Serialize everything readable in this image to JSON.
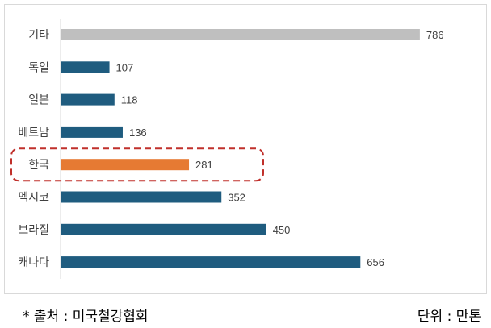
{
  "chart_data": {
    "type": "bar",
    "orientation": "horizontal",
    "categories": [
      "기타",
      "독일",
      "일본",
      "베트남",
      "한국",
      "멕시코",
      "브라질",
      "캐나다"
    ],
    "values": [
      786,
      107,
      118,
      136,
      281,
      352,
      450,
      656
    ],
    "colors": [
      "#bfbfbf",
      "#1f5c7f",
      "#1f5c7f",
      "#1f5c7f",
      "#e67a33",
      "#1f5c7f",
      "#1f5c7f",
      "#1f5c7f"
    ],
    "highlight": {
      "category": "한국",
      "style": "dashed-box",
      "color": "#c0302b"
    },
    "xlim": [
      0,
      1000
    ],
    "grid": false,
    "data_labels": true
  },
  "footer": {
    "source": "* 출처 : 미국철강협회",
    "unit": "단위 : 만톤"
  }
}
